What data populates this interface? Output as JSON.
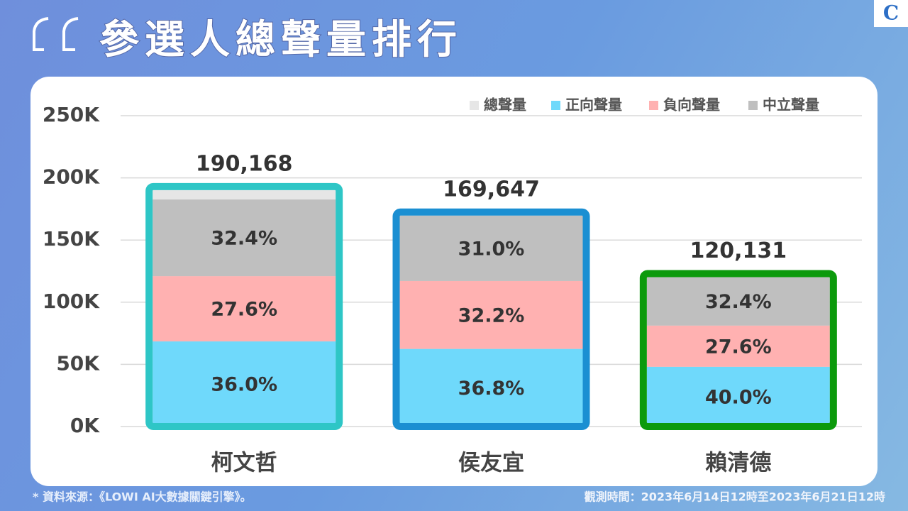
{
  "title": "參選人總聲量排行",
  "logo": "C",
  "chart_data": {
    "type": "stacked-bar",
    "categories": [
      "柯文哲",
      "侯友宜",
      "賴清德"
    ],
    "series": [
      {
        "name": "總聲量",
        "color": "#e6e6e6",
        "values": [
          190168,
          169647,
          120131
        ],
        "value_labels": [
          "190,168",
          "169,647",
          "120,131"
        ],
        "outline_colors": [
          "#2ec6c6",
          "#1b8fd2",
          "#0c9a0c"
        ]
      },
      {
        "name": "正向聲量",
        "color": "#6fd9fb",
        "values": [
          36.0,
          36.8,
          40.0
        ],
        "value_labels": [
          "36.0%",
          "36.8%",
          "40.0%"
        ]
      },
      {
        "name": "負向聲量",
        "color": "#ffb1b1",
        "values": [
          27.6,
          32.2,
          27.6
        ],
        "value_labels": [
          "27.6%",
          "32.2%",
          "27.6%"
        ]
      },
      {
        "name": "中立聲量",
        "color": "#bfbfbf",
        "values": [
          32.4,
          31.0,
          32.4
        ],
        "value_labels": [
          "32.4%",
          "31.0%",
          "32.4%"
        ]
      }
    ],
    "ylim": [
      0,
      250000
    ],
    "yticks": [
      {
        "value": 0,
        "label": "0K"
      },
      {
        "value": 50000,
        "label": "50K"
      },
      {
        "value": 100000,
        "label": "100K"
      },
      {
        "value": 150000,
        "label": "150K"
      },
      {
        "value": 200000,
        "label": "200K"
      },
      {
        "value": 250000,
        "label": "250K"
      }
    ],
    "grid": true,
    "legend": "top-right"
  },
  "footer": {
    "source": "* 資料來源：《LOWI AI大數據關鍵引擎》。",
    "period": "觀測時間：2023年6月14日12時至2023年6月21日12時"
  }
}
